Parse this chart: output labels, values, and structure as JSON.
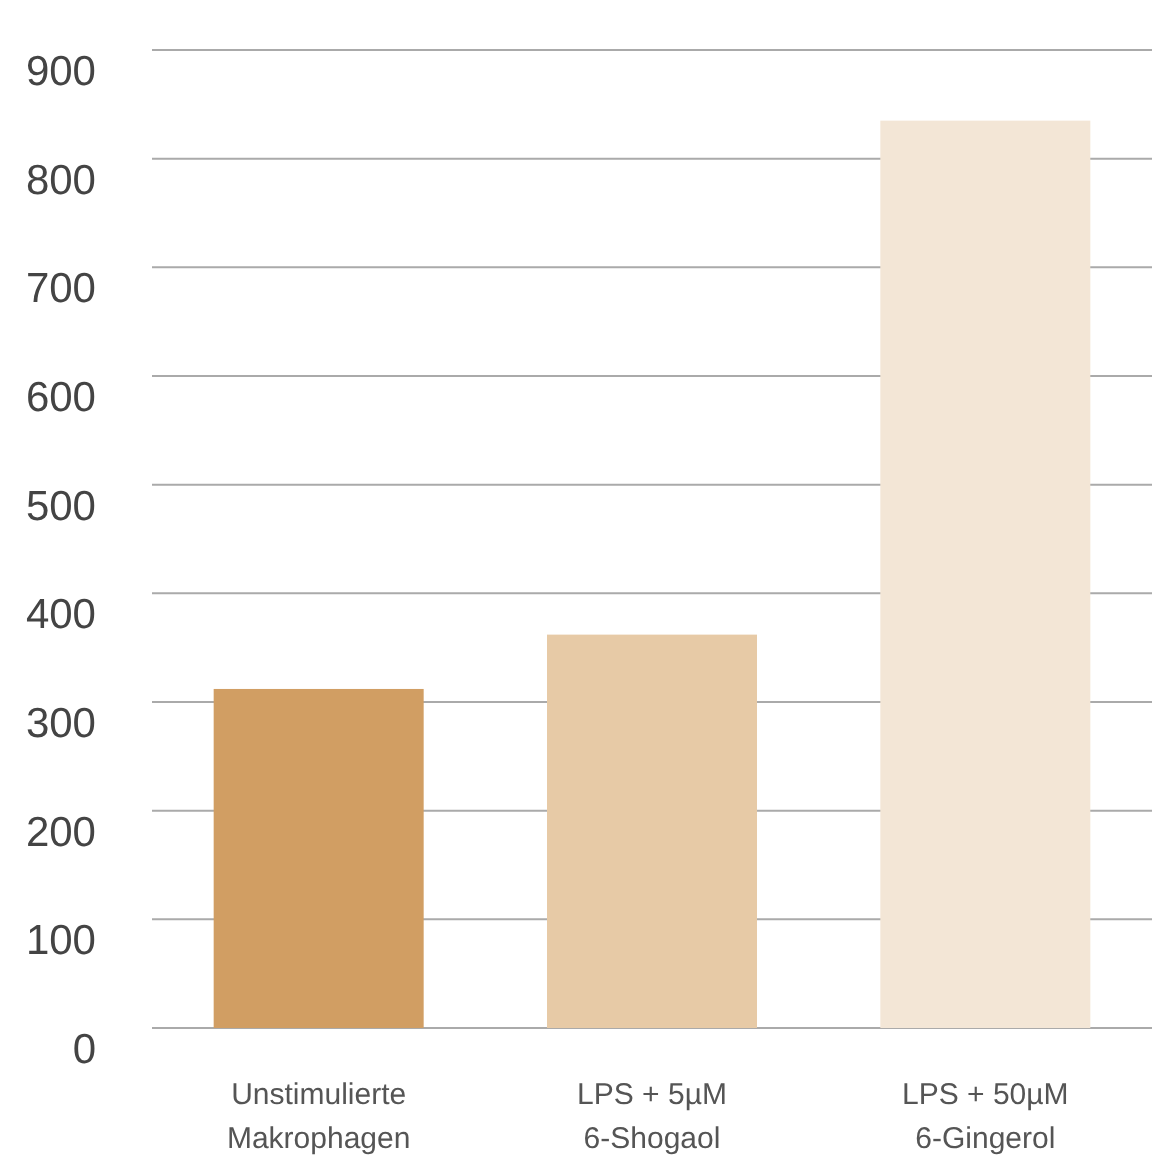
{
  "chart_data": {
    "type": "bar",
    "categories": [
      "Unstimulierte\nMakrophagen",
      "LPS + 5µM\n6-Shogaol",
      "LPS + 50µM\n6-Gingerol"
    ],
    "values": [
      312,
      362,
      835
    ],
    "colors": [
      "#d19e63",
      "#e7caa6",
      "#f3e6d6"
    ],
    "ylim": [
      0,
      900
    ],
    "yticks": [
      0,
      100,
      200,
      300,
      400,
      500,
      600,
      700,
      800,
      900
    ],
    "grid": "y"
  }
}
